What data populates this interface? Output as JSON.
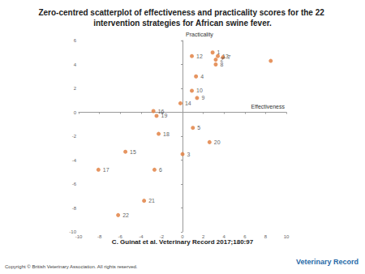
{
  "chart_data": {
    "type": "scatter",
    "title": "Zero-centred scatterplot of effectiveness and practicality scores for the 22 intervention strategies for African swine fever.",
    "x_label": "Effectiveness",
    "y_label": "Practicality",
    "x": [
      2.9,
      3.2,
      0.0,
      1.3,
      1.0,
      -2.7,
      3.9,
      3.2,
      1.4,
      0.9,
      0.9,
      3.4,
      -0.2,
      -5.5,
      -2.8,
      -8.1,
      -2.3,
      -2.5,
      2.6,
      -3.7,
      -6.2,
      8.5
    ],
    "values": [
      5.0,
      4.4,
      -3.5,
      3.0,
      -1.3,
      -4.8,
      4.6,
      4.0,
      1.2,
      1.8,
      4.7,
      4.7,
      0.75,
      -3.3,
      0.1,
      -4.8,
      -1.8,
      -0.3,
      -2.5,
      -7.4,
      -8.6,
      4.3
    ],
    "labels": [
      "1",
      "2",
      "3",
      "4",
      "5",
      "6",
      "7",
      "8",
      "9",
      "10",
      "12",
      "13",
      "14",
      "15",
      "16",
      "17",
      "18",
      "19",
      "20",
      "21",
      "22",
      null
    ],
    "color": "#e07b39",
    "marker": "circle",
    "xlim": [
      -10,
      10
    ],
    "xticks": [
      -10,
      -8,
      -6,
      -4,
      -2,
      0,
      2,
      4,
      6,
      8,
      10
    ],
    "ylim": [
      -10,
      6
    ],
    "yticks": [
      -10,
      -8,
      -6,
      -4,
      -2,
      0,
      2,
      4,
      6
    ],
    "grid": false,
    "source": "C. Guinat et al. Veterinary Record 2017;180:97",
    "copyright": "Copyright © British Veterinary Association. All rights reserved.",
    "logo_text": "Veterinary Record"
  }
}
